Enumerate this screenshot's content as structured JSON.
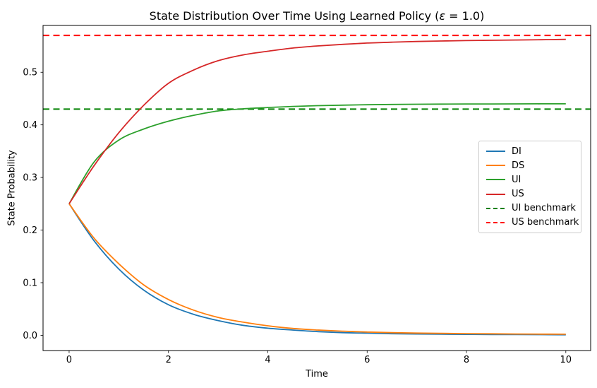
{
  "figure": {
    "title_parts": [
      "State Distribution Over Time Using Learned Policy (",
      "ε",
      " = 1.0)"
    ],
    "xlabel": "Time",
    "ylabel": "State Probability"
  },
  "chart_data": {
    "type": "line",
    "title": "State Distribution Over Time Using Learned Policy (ε = 1.0)",
    "xlabel": "Time",
    "ylabel": "State Probability",
    "xlim": [
      -0.525,
      10.5
    ],
    "ylim": [
      -0.029,
      0.589
    ],
    "x_ticks": [
      0,
      2,
      4,
      6,
      8,
      10
    ],
    "y_ticks": [
      0.0,
      0.1,
      0.2,
      0.3,
      0.4,
      0.5
    ],
    "grid": false,
    "legend_position": "center right",
    "x": [
      0,
      0.5,
      1,
      1.5,
      2,
      2.5,
      3,
      3.5,
      4,
      4.5,
      5,
      5.5,
      6,
      6.5,
      7,
      7.5,
      8,
      8.5,
      9,
      9.5,
      10
    ],
    "series": [
      {
        "name": "DI",
        "color": "#1f77b4",
        "style": "solid",
        "values": [
          0.25,
          0.18,
          0.126,
          0.086,
          0.058,
          0.04,
          0.028,
          0.019,
          0.0135,
          0.01,
          0.007,
          0.005,
          0.004,
          0.003,
          0.0025,
          0.002,
          0.0018,
          0.0015,
          0.0013,
          0.0012,
          0.001
        ]
      },
      {
        "name": "DS",
        "color": "#ff7f0e",
        "style": "solid",
        "values": [
          0.25,
          0.185,
          0.136,
          0.096,
          0.068,
          0.048,
          0.034,
          0.025,
          0.018,
          0.013,
          0.01,
          0.0078,
          0.0062,
          0.005,
          0.0042,
          0.0036,
          0.0031,
          0.0028,
          0.0025,
          0.0022,
          0.002
        ]
      },
      {
        "name": "UI",
        "color": "#2ca02c",
        "style": "solid",
        "values": [
          0.25,
          0.329,
          0.371,
          0.392,
          0.407,
          0.418,
          0.4265,
          0.4305,
          0.433,
          0.435,
          0.4365,
          0.4375,
          0.4382,
          0.4388,
          0.4392,
          0.4395,
          0.4397,
          0.4398,
          0.4399,
          0.44,
          0.44
        ]
      },
      {
        "name": "US",
        "color": "#d62728",
        "style": "solid",
        "values": [
          0.25,
          0.322,
          0.385,
          0.437,
          0.479,
          0.504,
          0.522,
          0.533,
          0.54,
          0.546,
          0.55,
          0.553,
          0.5555,
          0.5572,
          0.5585,
          0.5595,
          0.5602,
          0.5608,
          0.5613,
          0.5619,
          0.5625
        ]
      },
      {
        "name": "UI benchmark",
        "color": "#008000",
        "style": "dashed",
        "hline": 0.43
      },
      {
        "name": "US benchmark",
        "color": "#ff0000",
        "style": "dashed",
        "hline": 0.57
      }
    ]
  }
}
